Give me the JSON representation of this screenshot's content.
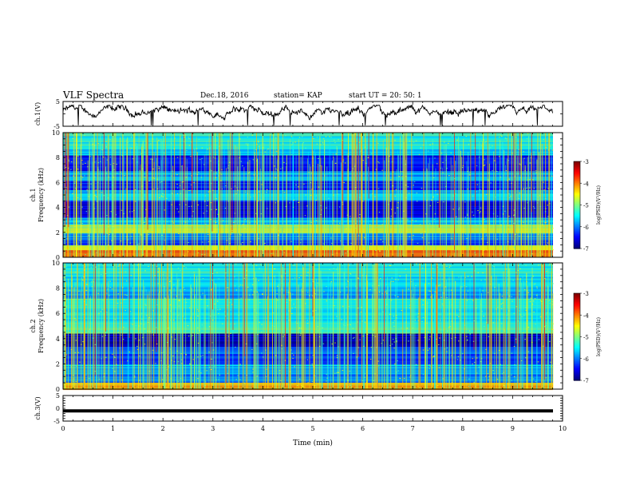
{
  "header": {
    "title": "VLF Spectra",
    "date": "Dec.18, 2016",
    "station": "station= KAP",
    "start": "start  UT =  20: 50: 1"
  },
  "chart_data": [
    {
      "type": "line",
      "panel": "ch1-waveform",
      "ylabel": "ch.1(V)",
      "ylim": [
        -5,
        5
      ],
      "xlim": [
        0,
        10
      ],
      "yticks": [
        "5",
        "-5"
      ],
      "color": "#000000",
      "description": "noisy voltage trace fluctuating around 0 V with dips reaching near -5 V"
    },
    {
      "type": "heatmap",
      "panel": "ch1-spectrogram",
      "ylabel": "ch.1 Frequency (kHz)",
      "ylim": [
        0,
        10
      ],
      "xlim": [
        0,
        9.8
      ],
      "yticks": [
        "0",
        "2",
        "4",
        "6",
        "8",
        "10"
      ],
      "colorbar": {
        "label": "log(PSD)(V²/Hz)",
        "range": [
          -7,
          -3
        ],
        "ticks": [
          "-3",
          "-4",
          "-5",
          "-6",
          "-7"
        ]
      }
    },
    {
      "type": "heatmap",
      "panel": "ch2-spectrogram",
      "ylabel": "ch.2 Frequency (kHz)",
      "ylim": [
        0,
        10
      ],
      "xlim": [
        0,
        9.8
      ],
      "yticks": [
        "0",
        "2",
        "4",
        "6",
        "8",
        "10"
      ],
      "colorbar": {
        "label": "log(PSD)(V²/Hz)",
        "range": [
          -7,
          -3
        ],
        "ticks": [
          "-3",
          "-4",
          "-5",
          "-6",
          "-7"
        ]
      }
    },
    {
      "type": "line",
      "panel": "ch3-waveform",
      "ylabel": "ch.3(V)",
      "ylim": [
        -5,
        5
      ],
      "xlim": [
        0,
        10
      ],
      "yticks": [
        "5",
        "0",
        "-5"
      ],
      "constant_value": -1,
      "color": "#000000"
    }
  ],
  "xaxis": {
    "label": "Time  (min)",
    "ticks": [
      "0",
      "1",
      "2",
      "3",
      "4",
      "5",
      "6",
      "7",
      "8",
      "9",
      "10"
    ]
  }
}
